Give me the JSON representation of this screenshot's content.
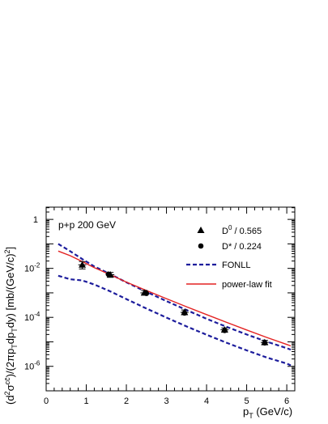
{
  "chart_data": {
    "type": "scatter",
    "title": "",
    "annotation": "p+p 200 GeV",
    "xlabel": {
      "base": "p",
      "sub": "T",
      "rest": " (GeV/c)"
    },
    "ylabel": "(d²σ^{cc̄}/(2πp_T dp_T dy) [mb/(GeV/c)²]",
    "xlim": [
      0,
      6.2
    ],
    "ylim_log10": [
      -7,
      0.5
    ],
    "y_scale": "log",
    "x_ticks": [
      0,
      1,
      2,
      3,
      4,
      5,
      6
    ],
    "x_tick_labels": [
      "0",
      "1",
      "2",
      "3",
      "4",
      "5",
      "6"
    ],
    "y_tick_labels": [
      {
        "exp": 0,
        "base": "1",
        "sup": ""
      },
      {
        "exp": -2,
        "base": "10",
        "sup": "-2"
      },
      {
        "exp": -4,
        "base": "10",
        "sup": "-4"
      },
      {
        "exp": -6,
        "base": "10",
        "sup": "-6"
      }
    ],
    "legend": {
      "placement": "top-right",
      "entries": [
        {
          "key": "d0",
          "label": "D / 0.565",
          "label_base": "D",
          "label_sup": "0",
          "label_rest": " / 0.565",
          "marker": "triangle"
        },
        {
          "key": "dstar",
          "label": "D* / 0.224",
          "label_base": "D*",
          "label_sup": "",
          "label_rest": " / 0.224",
          "marker": "circle"
        },
        {
          "key": "fonll",
          "label": "FONLL",
          "line": "dashed"
        },
        {
          "key": "powerlaw",
          "label": "power-law fit",
          "line": "solid"
        }
      ]
    },
    "series": [
      {
        "name": "D0 / 0.565",
        "marker": "triangle",
        "color": "#000000",
        "points": [
          {
            "x": 0.9,
            "y": 0.014,
            "ylo": 0.0095,
            "yhi": 0.019,
            "xerr": 0.1
          },
          {
            "x": 1.6,
            "y": 0.0055,
            "ylo": 0.0043,
            "yhi": 0.0068,
            "xerr": 0.1
          },
          {
            "x": 2.45,
            "y": 0.001,
            "ylo": 0.00085,
            "yhi": 0.00125,
            "xerr": 0.1
          },
          {
            "x": 3.45,
            "y": 0.00016,
            "ylo": 0.00013,
            "yhi": 0.0002,
            "xerr": 0.1
          },
          {
            "x": 4.45,
            "y": 3.1e-05,
            "ylo": 2.6e-05,
            "yhi": 3.7e-05,
            "xerr": 0.1
          },
          {
            "x": 5.45,
            "y": 9.5e-06,
            "ylo": 7.8e-06,
            "yhi": 1.15e-05,
            "xerr": 0.1
          }
        ]
      },
      {
        "name": "D* / 0.224",
        "marker": "circle",
        "color": "#000000",
        "points": [
          {
            "x": 1.55,
            "y": 0.0058
          },
          {
            "x": 2.5,
            "y": 0.00095
          },
          {
            "x": 3.45,
            "y": 0.00015
          },
          {
            "x": 4.45,
            "y": 2.9e-05
          },
          {
            "x": 5.45,
            "y": 9e-06
          }
        ]
      },
      {
        "name": "FONLL upper",
        "line": "dashed",
        "color": "#1c1c9c",
        "points": [
          [
            0.3,
            0.1
          ],
          [
            0.6,
            0.05
          ],
          [
            0.9,
            0.024
          ],
          [
            1.2,
            0.012
          ],
          [
            1.6,
            0.0058
          ],
          [
            2.0,
            0.0027
          ],
          [
            2.5,
            0.0011
          ],
          [
            3.0,
            0.00046
          ],
          [
            3.5,
            0.0002
          ],
          [
            4.0,
            8.75e-05
          ],
          [
            4.5,
            4.1e-05
          ],
          [
            5.0,
            2e-05
          ],
          [
            5.5,
            1.02e-05
          ],
          [
            6.0,
            5.5e-06
          ],
          [
            6.1,
            4.8e-06
          ]
        ]
      },
      {
        "name": "FONLL lower",
        "line": "dashed",
        "color": "#1c1c9c",
        "points": [
          [
            0.3,
            0.005
          ],
          [
            0.6,
            0.0036
          ],
          [
            0.9,
            0.0032
          ],
          [
            1.2,
            0.0022
          ],
          [
            1.6,
            0.00115
          ],
          [
            2.0,
            0.00056
          ],
          [
            2.5,
            0.00023
          ],
          [
            3.0,
            9.75e-05
          ],
          [
            3.5,
            4.25e-05
          ],
          [
            4.0,
            1.95e-05
          ],
          [
            4.5,
            9.2e-06
          ],
          [
            5.0,
            4.5e-06
          ],
          [
            5.5,
            2.3e-06
          ],
          [
            6.0,
            1.3e-06
          ],
          [
            6.1,
            1.1e-06
          ]
        ]
      },
      {
        "name": "power-law fit",
        "line": "solid",
        "color": "#e32222",
        "points": [
          [
            0.3,
            0.051
          ],
          [
            0.6,
            0.033
          ],
          [
            0.9,
            0.019
          ],
          [
            1.2,
            0.0107
          ],
          [
            1.6,
            0.0055
          ],
          [
            2.0,
            0.00275
          ],
          [
            2.5,
            0.00125
          ],
          [
            3.0,
            0.00058
          ],
          [
            3.5,
            0.00027
          ],
          [
            4.0,
            0.00013
          ],
          [
            4.5,
            6.25e-05
          ],
          [
            5.0,
            3.05e-05
          ],
          [
            5.5,
            1.52e-05
          ],
          [
            6.0,
            7.8e-06
          ],
          [
            6.1,
            6.8e-06
          ]
        ]
      }
    ]
  }
}
